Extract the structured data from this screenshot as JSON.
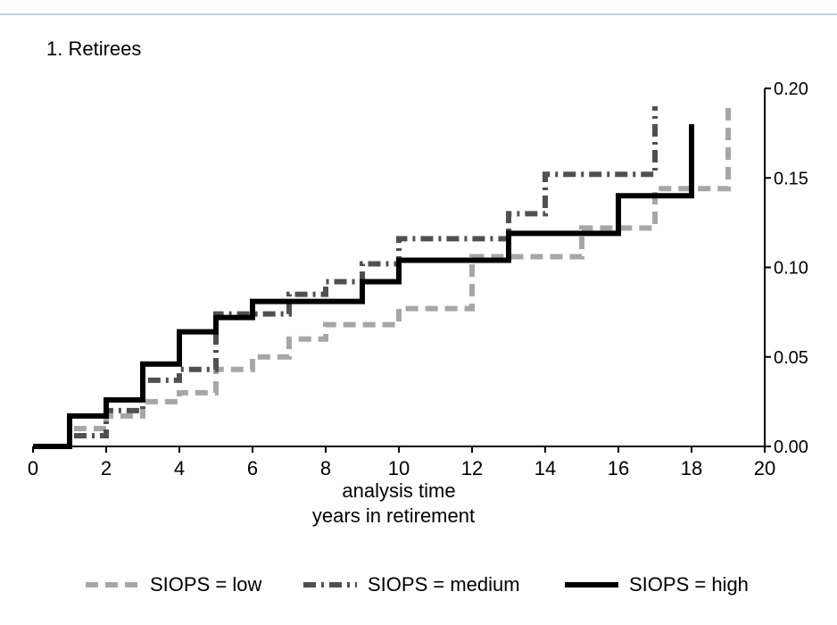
{
  "panel_title": "1. Retirees",
  "chart_data": {
    "type": "line",
    "step": true,
    "title": "1. Retirees",
    "xlabel": "analysis time",
    "xlabel2": "years in retirement",
    "ylabel": "",
    "xlim": [
      0,
      20
    ],
    "ylim": [
      0,
      0.2
    ],
    "x_ticks": [
      0,
      2,
      4,
      6,
      8,
      10,
      12,
      14,
      16,
      18,
      20
    ],
    "y_ticks": [
      0.0,
      0.05,
      0.1,
      0.15,
      0.2
    ],
    "y_tick_labels": [
      "0.00",
      "0.05",
      "0.10",
      "0.15",
      "0.20"
    ],
    "y_axis_position": "right",
    "grid": false,
    "legend_position": "bottom",
    "series": [
      {
        "name": "SIOPS = low",
        "color": "#a6a6a6",
        "dash": "dash",
        "x": [
          0,
          1,
          2,
          3,
          4,
          5,
          6,
          7,
          8,
          10,
          12,
          15,
          17,
          19
        ],
        "y": [
          0,
          0.01,
          0.017,
          0.025,
          0.03,
          0.043,
          0.05,
          0.06,
          0.068,
          0.077,
          0.106,
          0.122,
          0.144,
          0.19
        ]
      },
      {
        "name": "SIOPS = medium",
        "color": "#505050",
        "dash": "dash-dot",
        "x": [
          0,
          1,
          2,
          3,
          4,
          5,
          6,
          7,
          8,
          9,
          10,
          13,
          14,
          17
        ],
        "y": [
          0,
          0.006,
          0.02,
          0.037,
          0.043,
          0.074,
          0.074,
          0.085,
          0.092,
          0.102,
          0.116,
          0.13,
          0.152,
          0.19
        ]
      },
      {
        "name": "SIOPS = high",
        "color": "#000000",
        "dash": "solid",
        "x": [
          0,
          1,
          2,
          3,
          4,
          5,
          6,
          9,
          10,
          13,
          16,
          18
        ],
        "y": [
          0,
          0.017,
          0.026,
          0.046,
          0.064,
          0.072,
          0.081,
          0.092,
          0.104,
          0.119,
          0.14,
          0.18
        ]
      }
    ]
  },
  "legend": [
    {
      "label": "SIOPS = low",
      "color": "#a6a6a6",
      "dash": "dash"
    },
    {
      "label": "SIOPS = medium",
      "color": "#505050",
      "dash": "dash-dot"
    },
    {
      "label": "SIOPS = high",
      "color": "#000000",
      "dash": "solid"
    }
  ]
}
